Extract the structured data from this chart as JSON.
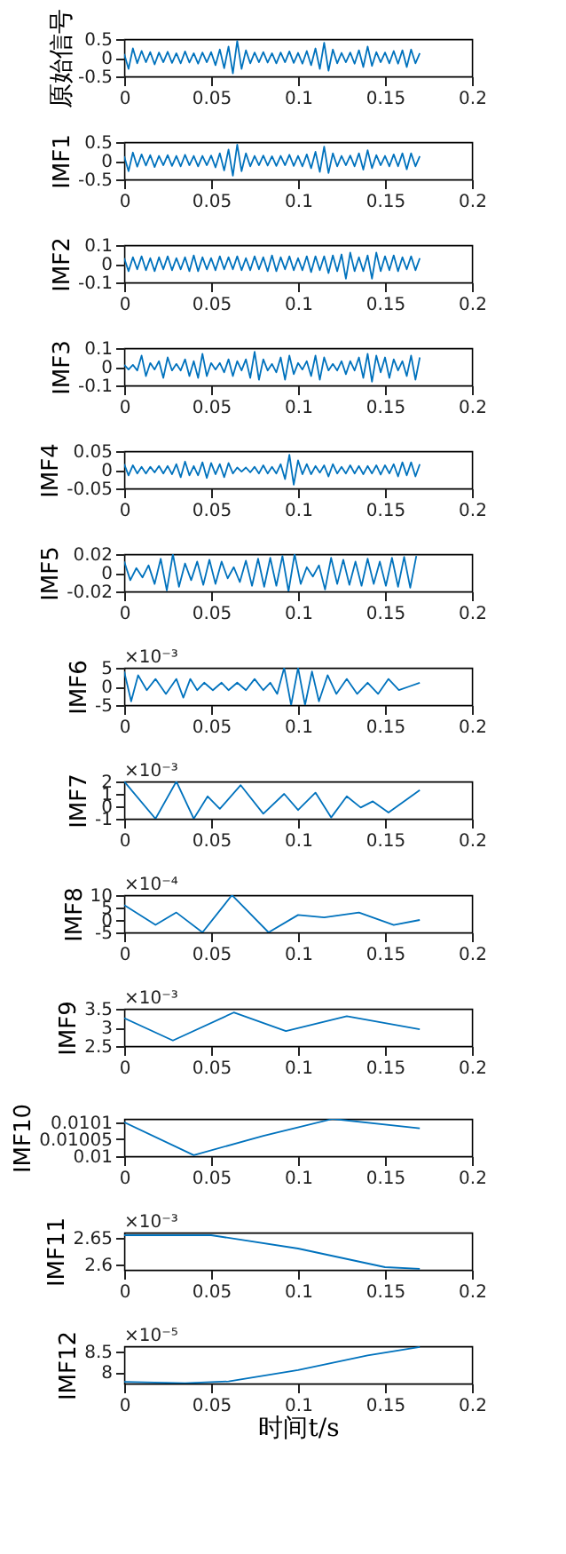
{
  "chart_data": [
    {
      "type": "line",
      "ylabel": "原始信号",
      "xlim": [
        0,
        0.2
      ],
      "xticks": [
        0,
        0.05,
        0.1,
        0.15,
        0.2
      ],
      "ylim": [
        -0.5,
        0.5
      ],
      "yticks": [
        -0.5,
        0,
        0.5
      ],
      "x": [
        0,
        0.0025,
        0.005,
        0.0075,
        0.01,
        0.0125,
        0.015,
        0.0175,
        0.02,
        0.0225,
        0.025,
        0.0275,
        0.03,
        0.0325,
        0.035,
        0.0375,
        0.04,
        0.0425,
        0.045,
        0.0475,
        0.05,
        0.0525,
        0.055,
        0.0575,
        0.06,
        0.0625,
        0.065,
        0.0675,
        0.07,
        0.0725,
        0.075,
        0.0775,
        0.08,
        0.0825,
        0.085,
        0.0875,
        0.09,
        0.0925,
        0.095,
        0.0975,
        0.1,
        0.1025,
        0.105,
        0.1075,
        0.11,
        0.1125,
        0.115,
        0.1175,
        0.12,
        0.1225,
        0.125,
        0.1275,
        0.13,
        0.1325,
        0.135,
        0.1375,
        0.14,
        0.1425,
        0.145,
        0.1475,
        0.15,
        0.1525,
        0.155,
        0.1575,
        0.16,
        0.1625,
        0.165,
        0.1675,
        0.17
      ],
      "series": [
        {
          "color": "#0072bd",
          "values": [
            0.1,
            -0.3,
            0.25,
            -0.15,
            0.18,
            -0.12,
            0.15,
            -0.18,
            0.14,
            -0.12,
            0.16,
            -0.14,
            0.12,
            -0.15,
            0.17,
            -0.13,
            0.12,
            -0.16,
            0.14,
            -0.12,
            0.15,
            -0.2,
            0.22,
            -0.28,
            0.3,
            -0.42,
            0.45,
            -0.3,
            0.2,
            -0.15,
            0.14,
            -0.12,
            0.15,
            -0.13,
            0.12,
            -0.15,
            0.14,
            -0.12,
            0.17,
            -0.14,
            0.13,
            -0.16,
            0.18,
            -0.2,
            0.25,
            -0.3,
            0.4,
            -0.35,
            0.22,
            -0.15,
            0.13,
            -0.12,
            0.14,
            -0.16,
            0.2,
            -0.25,
            0.3,
            -0.22,
            0.15,
            -0.12,
            0.14,
            -0.15,
            0.18,
            -0.16,
            0.2,
            -0.25,
            0.22,
            -0.15,
            0.12
          ]
        }
      ]
    },
    {
      "type": "line",
      "ylabel": "IMF1",
      "xlim": [
        0,
        0.2
      ],
      "xticks": [
        0,
        0.05,
        0.1,
        0.15,
        0.2
      ],
      "ylim": [
        -0.5,
        0.5
      ],
      "yticks": [
        -0.5,
        0,
        0.5
      ],
      "x": [
        0,
        0.0025,
        0.005,
        0.0075,
        0.01,
        0.0125,
        0.015,
        0.0175,
        0.02,
        0.0225,
        0.025,
        0.0275,
        0.03,
        0.0325,
        0.035,
        0.0375,
        0.04,
        0.0425,
        0.045,
        0.0475,
        0.05,
        0.0525,
        0.055,
        0.0575,
        0.06,
        0.0625,
        0.065,
        0.0675,
        0.07,
        0.0725,
        0.075,
        0.0775,
        0.08,
        0.0825,
        0.085,
        0.0875,
        0.09,
        0.0925,
        0.095,
        0.0975,
        0.1,
        0.1025,
        0.105,
        0.1075,
        0.11,
        0.1125,
        0.115,
        0.1175,
        0.12,
        0.1225,
        0.125,
        0.1275,
        0.13,
        0.1325,
        0.135,
        0.1375,
        0.14,
        0.1425,
        0.145,
        0.1475,
        0.15,
        0.1525,
        0.155,
        0.1575,
        0.16,
        0.1625,
        0.165,
        0.1675,
        0.17
      ],
      "series": [
        {
          "color": "#0072bd",
          "values": [
            0.12,
            -0.28,
            0.22,
            -0.16,
            0.17,
            -0.13,
            0.15,
            -0.17,
            0.13,
            -0.12,
            0.15,
            -0.14,
            0.13,
            -0.15,
            0.16,
            -0.12,
            0.13,
            -0.15,
            0.13,
            -0.12,
            0.14,
            -0.18,
            0.2,
            -0.26,
            0.3,
            -0.4,
            0.43,
            -0.28,
            0.2,
            -0.15,
            0.13,
            -0.12,
            0.14,
            -0.13,
            0.12,
            -0.14,
            0.13,
            -0.12,
            0.16,
            -0.14,
            0.13,
            -0.15,
            0.17,
            -0.2,
            0.24,
            -0.3,
            0.38,
            -0.33,
            0.2,
            -0.15,
            0.13,
            -0.12,
            0.14,
            -0.15,
            0.2,
            -0.24,
            0.28,
            -0.2,
            0.15,
            -0.12,
            0.13,
            -0.15,
            0.17,
            -0.15,
            0.2,
            -0.23,
            0.2,
            -0.15,
            0.12
          ]
        }
      ]
    },
    {
      "type": "line",
      "ylabel": "IMF2",
      "xlim": [
        0,
        0.2
      ],
      "xticks": [
        0,
        0.05,
        0.1,
        0.15,
        0.2
      ],
      "ylim": [
        -0.1,
        0.1
      ],
      "yticks": [
        -0.1,
        0,
        0.1
      ],
      "x": [
        0,
        0.0025,
        0.005,
        0.0075,
        0.01,
        0.0125,
        0.015,
        0.0175,
        0.02,
        0.0225,
        0.025,
        0.0275,
        0.03,
        0.0325,
        0.035,
        0.0375,
        0.04,
        0.0425,
        0.045,
        0.0475,
        0.05,
        0.0525,
        0.055,
        0.0575,
        0.06,
        0.0625,
        0.065,
        0.0675,
        0.07,
        0.0725,
        0.075,
        0.0775,
        0.08,
        0.0825,
        0.085,
        0.0875,
        0.09,
        0.0925,
        0.095,
        0.0975,
        0.1,
        0.1025,
        0.105,
        0.1075,
        0.11,
        0.1125,
        0.115,
        0.1175,
        0.12,
        0.1225,
        0.125,
        0.1275,
        0.13,
        0.1325,
        0.135,
        0.1375,
        0.14,
        0.1425,
        0.145,
        0.1475,
        0.15,
        0.1525,
        0.155,
        0.1575,
        0.16,
        0.1625,
        0.165,
        0.1675,
        0.17
      ],
      "series": [
        {
          "color": "#0072bd",
          "values": [
            0.03,
            -0.04,
            0.035,
            -0.03,
            0.04,
            -0.035,
            0.03,
            -0.04,
            0.035,
            -0.03,
            0.04,
            -0.035,
            0.03,
            -0.03,
            0.035,
            -0.04,
            0.045,
            -0.04,
            0.035,
            -0.03,
            0.03,
            -0.035,
            0.04,
            -0.03,
            0.035,
            -0.03,
            0.04,
            -0.035,
            0.03,
            -0.035,
            0.04,
            -0.03,
            0.035,
            -0.04,
            0.045,
            -0.04,
            0.035,
            -0.03,
            0.04,
            -0.035,
            0.03,
            -0.035,
            0.04,
            -0.045,
            0.04,
            -0.035,
            0.04,
            -0.05,
            0.045,
            -0.04,
            0.05,
            -0.08,
            0.06,
            -0.04,
            0.035,
            -0.04,
            0.045,
            -0.08,
            0.06,
            -0.04,
            0.04,
            -0.035,
            0.045,
            -0.04,
            0.035,
            -0.03,
            0.04,
            -0.035,
            0.03
          ]
        }
      ]
    },
    {
      "type": "line",
      "ylabel": "IMF3",
      "xlim": [
        0,
        0.2
      ],
      "xticks": [
        0,
        0.05,
        0.1,
        0.15,
        0.2
      ],
      "ylim": [
        -0.1,
        0.1
      ],
      "yticks": [
        -0.1,
        0,
        0.1
      ],
      "x": [
        0,
        0.0025,
        0.005,
        0.0075,
        0.01,
        0.0125,
        0.015,
        0.0175,
        0.02,
        0.0225,
        0.025,
        0.0275,
        0.03,
        0.0325,
        0.035,
        0.0375,
        0.04,
        0.0425,
        0.045,
        0.0475,
        0.05,
        0.0525,
        0.055,
        0.0575,
        0.06,
        0.0625,
        0.065,
        0.0675,
        0.07,
        0.0725,
        0.075,
        0.0775,
        0.08,
        0.0825,
        0.085,
        0.0875,
        0.09,
        0.0925,
        0.095,
        0.0975,
        0.1,
        0.1025,
        0.105,
        0.1075,
        0.11,
        0.1125,
        0.115,
        0.1175,
        0.12,
        0.1225,
        0.125,
        0.1275,
        0.13,
        0.1325,
        0.135,
        0.1375,
        0.14,
        0.1425,
        0.145,
        0.1475,
        0.15,
        0.1525,
        0.155,
        0.1575,
        0.16,
        0.1625,
        0.165,
        0.1675,
        0.17
      ],
      "series": [
        {
          "color": "#0072bd",
          "values": [
            0.01,
            -0.015,
            0.01,
            -0.02,
            0.06,
            -0.05,
            0.02,
            -0.015,
            0.03,
            -0.06,
            0.05,
            -0.02,
            0.015,
            -0.02,
            0.04,
            -0.05,
            0.03,
            -0.06,
            0.07,
            -0.05,
            0.02,
            -0.015,
            0.02,
            -0.03,
            0.04,
            -0.05,
            0.03,
            -0.02,
            0.04,
            -0.06,
            0.08,
            -0.07,
            0.04,
            -0.02,
            0.015,
            -0.03,
            0.05,
            -0.07,
            0.06,
            -0.04,
            0.02,
            -0.015,
            0.03,
            -0.05,
            0.06,
            -0.07,
            0.05,
            -0.02,
            0.015,
            -0.02,
            0.03,
            -0.04,
            0.03,
            -0.02,
            0.05,
            -0.06,
            0.07,
            -0.08,
            0.06,
            -0.03,
            0.05,
            -0.06,
            0.04,
            -0.02,
            0.03,
            -0.05,
            0.06,
            -0.07,
            0.05
          ]
        }
      ]
    },
    {
      "type": "line",
      "ylabel": "IMF4",
      "xlim": [
        0,
        0.2
      ],
      "xticks": [
        0,
        0.05,
        0.1,
        0.15,
        0.2
      ],
      "ylim": [
        -0.05,
        0.05
      ],
      "yticks": [
        -0.05,
        0,
        0.05
      ],
      "x": [
        0,
        0.0025,
        0.005,
        0.0075,
        0.01,
        0.0125,
        0.015,
        0.0175,
        0.02,
        0.0225,
        0.025,
        0.0275,
        0.03,
        0.0325,
        0.035,
        0.0375,
        0.04,
        0.0425,
        0.045,
        0.0475,
        0.05,
        0.0525,
        0.055,
        0.0575,
        0.06,
        0.0625,
        0.065,
        0.0675,
        0.07,
        0.0725,
        0.075,
        0.0775,
        0.08,
        0.0825,
        0.085,
        0.0875,
        0.09,
        0.0925,
        0.095,
        0.0975,
        0.1,
        0.1025,
        0.105,
        0.1075,
        0.11,
        0.1125,
        0.115,
        0.1175,
        0.12,
        0.1225,
        0.125,
        0.1275,
        0.13,
        0.1325,
        0.135,
        0.1375,
        0.14,
        0.1425,
        0.145,
        0.1475,
        0.15,
        0.1525,
        0.155,
        0.1575,
        0.16,
        0.1625,
        0.165,
        0.1675,
        0.17
      ],
      "series": [
        {
          "color": "#0072bd",
          "values": [
            0.015,
            -0.015,
            0.012,
            -0.01,
            0.008,
            -0.01,
            0.008,
            -0.007,
            0.01,
            -0.01,
            0.01,
            -0.012,
            0.015,
            -0.02,
            0.022,
            -0.015,
            0.01,
            -0.015,
            0.02,
            -0.022,
            0.018,
            -0.012,
            0.015,
            -0.02,
            0.018,
            -0.01,
            0.006,
            -0.005,
            0.006,
            -0.007,
            0.008,
            -0.01,
            0.012,
            -0.01,
            0.008,
            -0.01,
            0.015,
            -0.025,
            0.04,
            -0.04,
            0.025,
            -0.012,
            0.015,
            -0.012,
            0.01,
            -0.008,
            0.012,
            -0.018,
            0.015,
            -0.01,
            0.008,
            -0.01,
            0.012,
            -0.01,
            0.01,
            -0.012,
            0.01,
            -0.01,
            0.012,
            -0.013,
            0.012,
            -0.01,
            0.015,
            -0.018,
            0.02,
            -0.015,
            0.02,
            -0.018,
            0.015
          ]
        }
      ]
    },
    {
      "type": "line",
      "ylabel": "IMF5",
      "xlim": [
        0,
        0.2
      ],
      "xticks": [
        0,
        0.05,
        0.1,
        0.15,
        0.2
      ],
      "ylim": [
        -0.02,
        0.02
      ],
      "yticks": [
        -0.02,
        0,
        0.02
      ],
      "x": [
        0,
        0.0035,
        0.007,
        0.0105,
        0.014,
        0.0175,
        0.021,
        0.0245,
        0.028,
        0.0315,
        0.035,
        0.0385,
        0.042,
        0.0455,
        0.049,
        0.0525,
        0.056,
        0.0595,
        0.063,
        0.0665,
        0.07,
        0.0735,
        0.077,
        0.0805,
        0.084,
        0.0875,
        0.091,
        0.0945,
        0.098,
        0.1015,
        0.105,
        0.1085,
        0.112,
        0.1155,
        0.119,
        0.1225,
        0.126,
        0.1295,
        0.133,
        0.1365,
        0.14,
        0.1435,
        0.147,
        0.1505,
        0.154,
        0.1575,
        0.161,
        0.1645,
        0.168
      ],
      "series": [
        {
          "color": "#0072bd",
          "values": [
            0.012,
            -0.008,
            0.005,
            -0.005,
            0.008,
            -0.012,
            0.015,
            -0.019,
            0.02,
            -0.015,
            0.01,
            -0.008,
            0.012,
            -0.013,
            0.014,
            -0.012,
            0.012,
            -0.006,
            0.006,
            -0.01,
            0.013,
            -0.014,
            0.015,
            -0.015,
            0.016,
            -0.014,
            0.018,
            -0.02,
            0.02,
            -0.012,
            0.006,
            -0.004,
            0.008,
            -0.018,
            0.016,
            -0.012,
            0.014,
            -0.013,
            0.012,
            -0.014,
            0.015,
            -0.012,
            0.012,
            -0.014,
            0.016,
            -0.015,
            0.017,
            -0.016,
            0.018
          ]
        }
      ]
    },
    {
      "type": "line",
      "ylabel": "IMF6",
      "annotations": [
        "×10⁻³"
      ],
      "xlim": [
        0,
        0.2
      ],
      "xticks": [
        0,
        0.05,
        0.1,
        0.15,
        0.2
      ],
      "ylim": [
        -5,
        5
      ],
      "yticks": [
        -5,
        0,
        5
      ],
      "x": [
        0,
        0.004,
        0.008,
        0.013,
        0.018,
        0.024,
        0.03,
        0.034,
        0.038,
        0.042,
        0.046,
        0.051,
        0.056,
        0.06,
        0.065,
        0.07,
        0.075,
        0.08,
        0.084,
        0.088,
        0.092,
        0.096,
        0.1,
        0.104,
        0.108,
        0.112,
        0.117,
        0.122,
        0.128,
        0.134,
        0.14,
        0.146,
        0.152,
        0.158,
        0.164,
        0.17
      ],
      "series": [
        {
          "color": "#0072bd",
          "values": [
            4,
            -4,
            3,
            -1,
            2,
            -2,
            2,
            -3,
            2,
            -1,
            1,
            -1,
            1,
            -1,
            1,
            -1,
            2,
            -1,
            1,
            -2,
            5,
            -5,
            5,
            -5,
            4,
            -4,
            3,
            -2,
            2,
            -2,
            1,
            -2,
            2,
            -1,
            0,
            1
          ]
        }
      ]
    },
    {
      "type": "line",
      "ylabel": "IMF7",
      "annotations": [
        "×10⁻³"
      ],
      "xlim": [
        0,
        0.2
      ],
      "xticks": [
        0,
        0.05,
        0.1,
        0.15,
        0.2
      ],
      "ylim": [
        -1,
        2
      ],
      "yticks": [
        -1,
        0,
        1,
        2
      ],
      "x": [
        0,
        0.018,
        0.03,
        0.04,
        0.048,
        0.055,
        0.067,
        0.08,
        0.092,
        0.1,
        0.11,
        0.119,
        0.128,
        0.136,
        0.143,
        0.152,
        0.17
      ],
      "series": [
        {
          "color": "#0072bd",
          "values": [
            2,
            -1,
            2,
            -1,
            0.8,
            -0.2,
            1.7,
            -0.6,
            1,
            -0.3,
            1.1,
            -0.9,
            0.8,
            -0.1,
            0.4,
            -0.5,
            1.3
          ]
        }
      ]
    },
    {
      "type": "line",
      "ylabel": "IMF8",
      "annotations": [
        "×10⁻⁴"
      ],
      "xlim": [
        0,
        0.2
      ],
      "xticks": [
        0,
        0.05,
        0.1,
        0.15,
        0.2
      ],
      "ylim": [
        -5,
        10
      ],
      "yticks": [
        -5,
        0,
        5,
        10
      ],
      "x": [
        0,
        0.018,
        0.03,
        0.045,
        0.062,
        0.083,
        0.1,
        0.115,
        0.135,
        0.155,
        0.17
      ],
      "series": [
        {
          "color": "#0072bd",
          "values": [
            6,
            -2,
            3,
            -5,
            10,
            -5,
            2,
            1,
            3,
            -2,
            0
          ]
        }
      ]
    },
    {
      "type": "line",
      "ylabel": "IMF9",
      "annotations": [
        "×10⁻³"
      ],
      "xlim": [
        0,
        0.2
      ],
      "xticks": [
        0,
        0.05,
        0.1,
        0.15,
        0.2
      ],
      "ylim": [
        2.5,
        3.5
      ],
      "yticks": [
        2.5,
        3,
        3.5
      ],
      "x": [
        0,
        0.028,
        0.063,
        0.093,
        0.128,
        0.17
      ],
      "series": [
        {
          "color": "#0072bd",
          "values": [
            3.25,
            2.65,
            3.4,
            2.9,
            3.3,
            2.95
          ]
        }
      ]
    },
    {
      "type": "line",
      "ylabel": "IMF10",
      "xlim": [
        0,
        0.2
      ],
      "xticks": [
        0,
        0.05,
        0.1,
        0.15,
        0.2
      ],
      "ylim": [
        0.01,
        0.01011
      ],
      "yticks": [
        0.01,
        0.01005,
        0.0101
      ],
      "x": [
        0,
        0.04,
        0.08,
        0.12,
        0.17
      ],
      "series": [
        {
          "color": "#0072bd",
          "values": [
            0.0101,
            0.010003,
            0.01006,
            0.01011,
            0.010082
          ]
        }
      ]
    },
    {
      "type": "line",
      "ylabel": "IMF11",
      "annotations": [
        "×10⁻³"
      ],
      "xlim": [
        0,
        0.2
      ],
      "xticks": [
        0,
        0.05,
        0.1,
        0.15,
        0.2
      ],
      "ylim": [
        2.59,
        2.66
      ],
      "yticks": [
        2.6,
        2.65
      ],
      "x": [
        0,
        0.05,
        0.1,
        0.15,
        0.17
      ],
      "series": [
        {
          "color": "#0072bd",
          "values": [
            2.655,
            2.655,
            2.63,
            2.595,
            2.592
          ]
        }
      ]
    },
    {
      "type": "line",
      "ylabel": "IMF12",
      "xlabel": "时间t/s",
      "annotations": [
        "×10⁻⁵"
      ],
      "xlim": [
        0,
        0.2
      ],
      "xticks": [
        0,
        0.05,
        0.1,
        0.15,
        0.2
      ],
      "ylim": [
        7.73,
        8.62
      ],
      "yticks": [
        8,
        8.5
      ],
      "x": [
        0,
        0.035,
        0.06,
        0.1,
        0.14,
        0.17
      ],
      "series": [
        {
          "color": "#0072bd",
          "values": [
            7.77,
            7.74,
            7.78,
            8.05,
            8.4,
            8.6
          ]
        }
      ]
    }
  ]
}
